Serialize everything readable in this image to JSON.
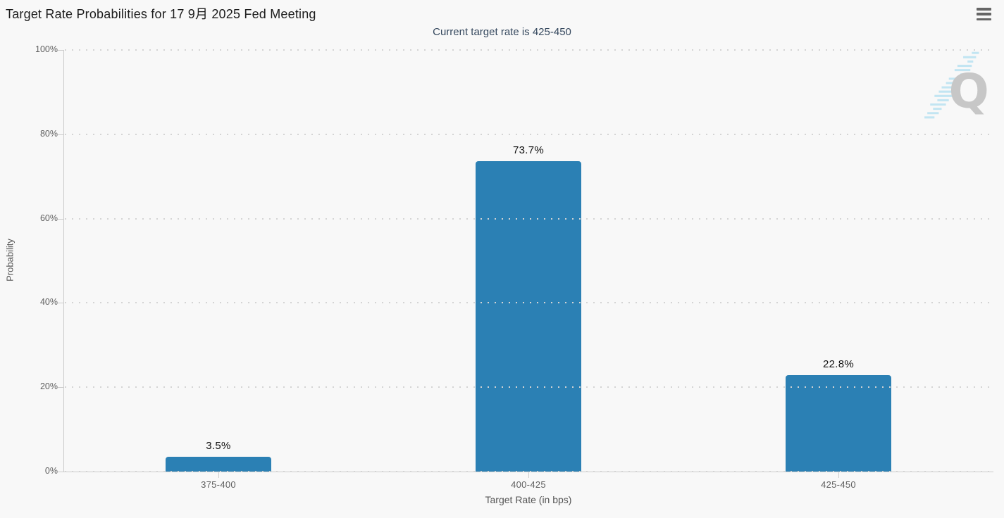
{
  "page": {
    "background": "#f8f8f8"
  },
  "header": {
    "title": "Target Rate Probabilities for 17 9月 2025 Fed Meeting",
    "subtitle": "Current target rate is 425-450",
    "menu_icon": "hamburger-icon"
  },
  "watermark": {
    "letter": "Q",
    "q_color": "#c7c7c7",
    "dash_color": "#b9e2f2"
  },
  "chart_data": {
    "type": "bar",
    "title": "Target Rate Probabilities for 17 9月 2025 Fed Meeting",
    "subtitle": "Current target rate is 425-450",
    "categories": [
      "375-400",
      "400-425",
      "425-450"
    ],
    "values": [
      3.5,
      73.7,
      22.8
    ],
    "data_labels": [
      "3.5%",
      "73.7%",
      "22.8%"
    ],
    "xlabel": "Target Rate (in bps)",
    "ylabel": "Probability",
    "ylim": [
      0,
      100
    ],
    "ytick_values": [
      0,
      20,
      40,
      60,
      80,
      100
    ],
    "ytick_labels": [
      "0%",
      "20%",
      "40%",
      "60%",
      "80%",
      "100%"
    ],
    "grid": "horizontal-dotted",
    "legend": "none",
    "bar_color": "#2b80b4"
  }
}
